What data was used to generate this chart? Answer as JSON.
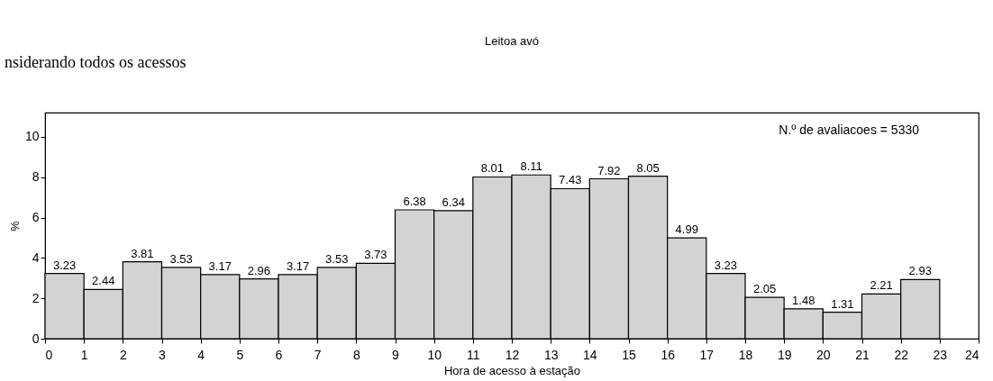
{
  "chart_data": {
    "type": "histogram",
    "title": "Leitoa avó",
    "xlabel": "Hora de acesso à estação",
    "ylabel": "%",
    "annotations": [
      "nsiderando todos os acessos",
      "N.º de avaliacoes =      5330"
    ],
    "bins": [
      0,
      1,
      2,
      3,
      4,
      5,
      6,
      7,
      8,
      9,
      10,
      11,
      12,
      13,
      14,
      15,
      16,
      17,
      18,
      19,
      20,
      21,
      22,
      23
    ],
    "values": [
      3.23,
      2.44,
      3.81,
      3.53,
      3.17,
      2.96,
      3.17,
      3.53,
      3.73,
      6.38,
      6.34,
      8.01,
      8.11,
      7.43,
      7.92,
      8.05,
      4.99,
      3.23,
      2.05,
      1.48,
      1.31,
      2.21,
      2.93
    ],
    "color": "#d3d3d3",
    "xlim": [
      0,
      24
    ],
    "xticks": [
      0,
      1,
      2,
      3,
      4,
      5,
      6,
      7,
      8,
      9,
      10,
      11,
      12,
      13,
      14,
      15,
      16,
      17,
      18,
      19,
      20,
      21,
      22,
      23,
      24
    ],
    "ylim": [
      0,
      11.2
    ],
    "yticks": [
      0,
      2,
      4,
      6,
      8,
      10
    ],
    "grid": false,
    "data_labels": true
  }
}
